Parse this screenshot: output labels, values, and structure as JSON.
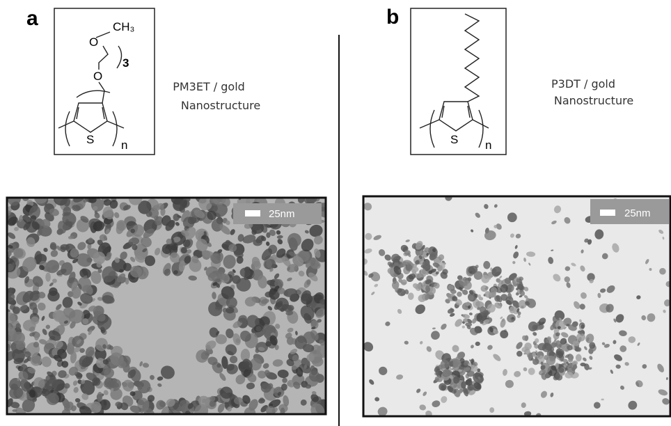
{
  "panels": [
    {
      "label": "a",
      "structure": {
        "atoms": [
          "CH₃",
          "O",
          "3",
          "O",
          "S",
          "n"
        ]
      },
      "caption": [
        "PM3ET / gold",
        "Nanostructure"
      ],
      "scale_bar": "25nm"
    },
    {
      "label": "b",
      "structure": {
        "atoms": [
          "S",
          "n"
        ]
      },
      "caption": [
        "P3DT / gold",
        "Nanostructure"
      ],
      "scale_bar": "25nm"
    }
  ]
}
